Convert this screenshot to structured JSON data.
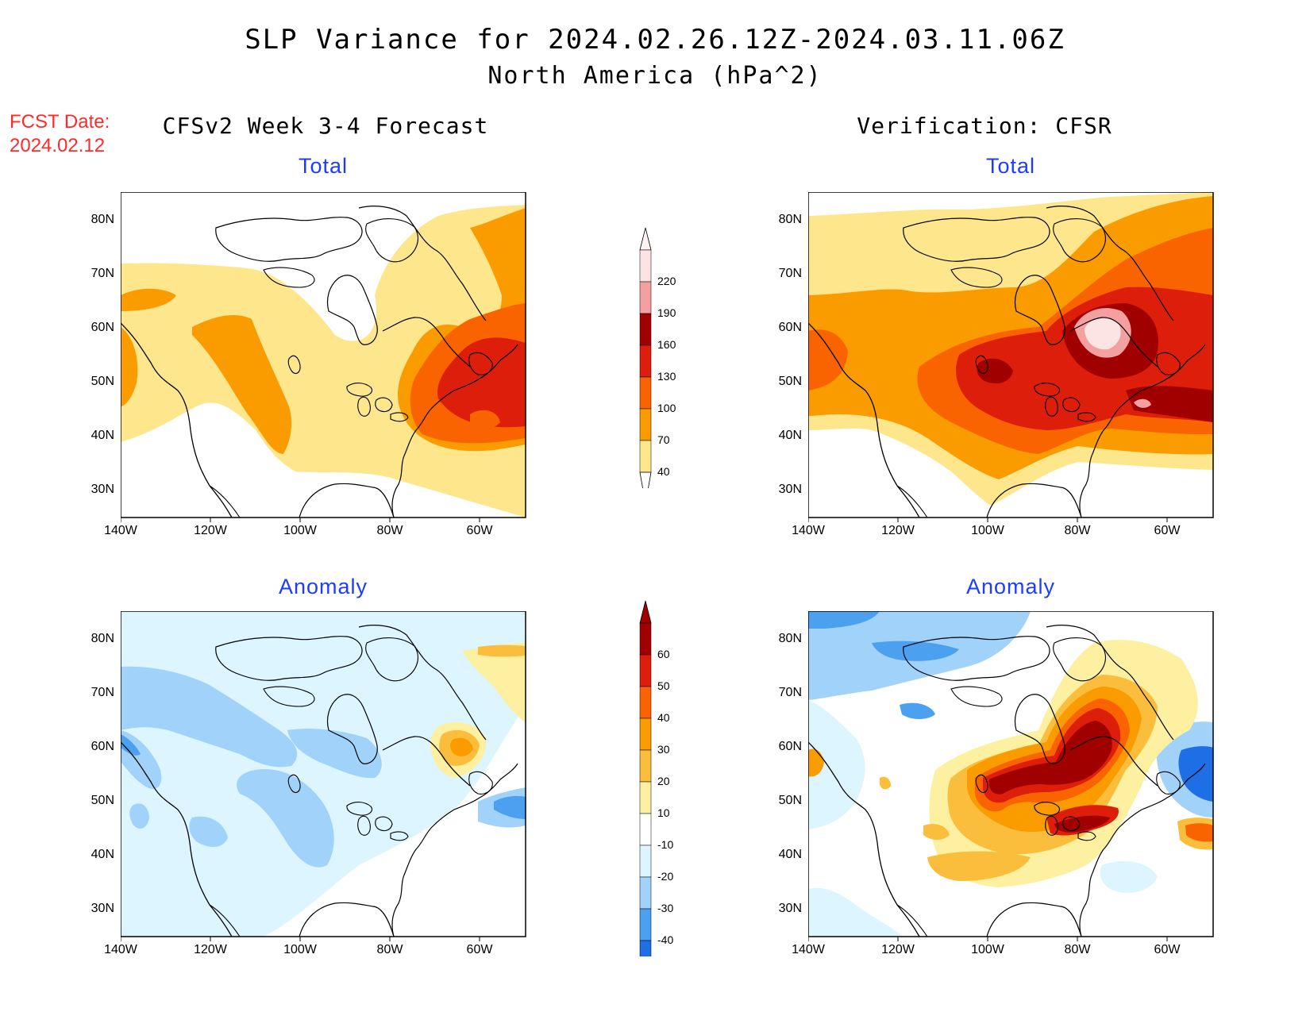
{
  "title": "SLP Variance for 2024.02.26.12Z-2024.03.11.06Z",
  "subtitle": "North America (hPa^2)",
  "fcst_label": "FCST Date:",
  "fcst_date": "2024.02.12",
  "columns": [
    {
      "title": "CFSv2 Week 3-4 Forecast"
    },
    {
      "title": "Verification: CFSR"
    }
  ],
  "panels": [
    {
      "label": "Total"
    },
    {
      "label": "Total"
    },
    {
      "label": "Anomaly"
    },
    {
      "label": "Anomaly"
    }
  ],
  "axes": {
    "lat_labels": [
      "80N",
      "70N",
      "60N",
      "50N",
      "40N",
      "30N"
    ],
    "lon_labels": [
      "140W",
      "120W",
      "100W",
      "80W",
      "60W"
    ]
  },
  "colorbar_total": {
    "levels": [
      "220",
      "190",
      "160",
      "130",
      "100",
      "70",
      "40"
    ],
    "colors": [
      "#fce4e4",
      "#f4a0a0",
      "#a00000",
      "#dc1e0a",
      "#fa6400",
      "#fa9b00",
      "#fde68c"
    ]
  },
  "colorbar_anomaly": {
    "levels": [
      "60",
      "50",
      "40",
      "30",
      "20",
      "10",
      "-10",
      "-20",
      "-30",
      "-40"
    ],
    "colors": [
      "#a00000",
      "#dc1e0a",
      "#fa6400",
      "#fa9b00",
      "#fbbe3c",
      "#fdf0a0",
      "#ffffff",
      "#dcf5ff",
      "#a0d2fa",
      "#4ba0f0",
      "#1e6ee6"
    ]
  }
}
